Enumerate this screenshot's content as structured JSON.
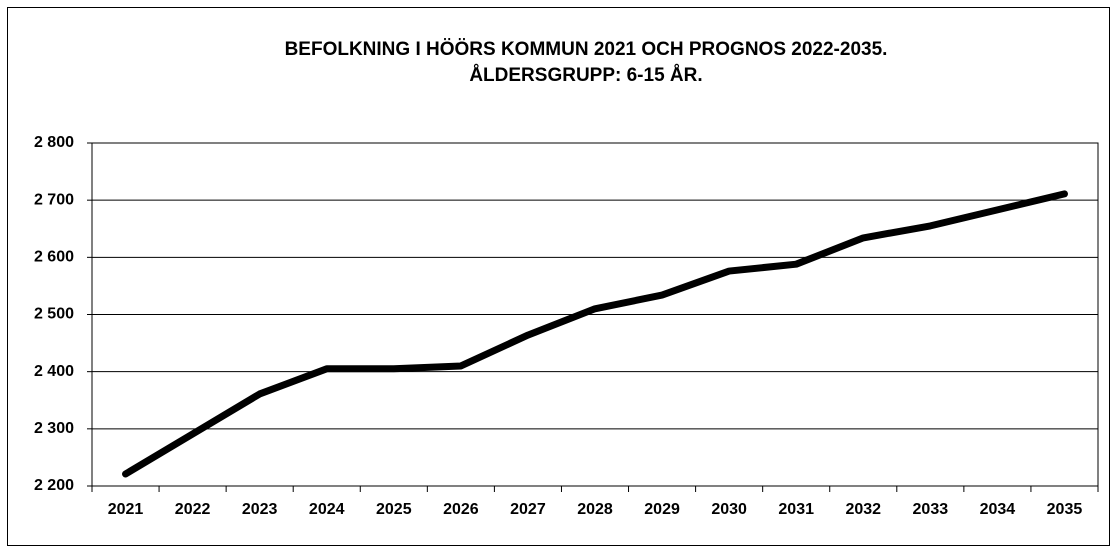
{
  "chart_data": {
    "type": "line",
    "title": "BEFOLKNING I HÖÖRS KOMMUN 2021 OCH PROGNOS 2022-2035.",
    "subtitle": "ÅLDERSGRUPP: 6-15 ÅR.",
    "categories": [
      "2021",
      "2022",
      "2023",
      "2024",
      "2025",
      "2026",
      "2027",
      "2028",
      "2029",
      "2030",
      "2031",
      "2032",
      "2033",
      "2034",
      "2035"
    ],
    "values": [
      2221,
      2291,
      2361,
      2405,
      2405,
      2410,
      2464,
      2510,
      2534,
      2576,
      2588,
      2634,
      2655,
      2683,
      2711
    ],
    "color": "#000000",
    "ylim": [
      2200,
      2800
    ],
    "yticks": [
      {
        "value": 2200,
        "label": "2 200"
      },
      {
        "value": 2300,
        "label": "2 300"
      },
      {
        "value": 2400,
        "label": "2 400"
      },
      {
        "value": 2500,
        "label": "2 500"
      },
      {
        "value": 2600,
        "label": "2 600"
      },
      {
        "value": 2700,
        "label": "2 700"
      },
      {
        "value": 2800,
        "label": "2 800"
      }
    ],
    "grid": true
  }
}
